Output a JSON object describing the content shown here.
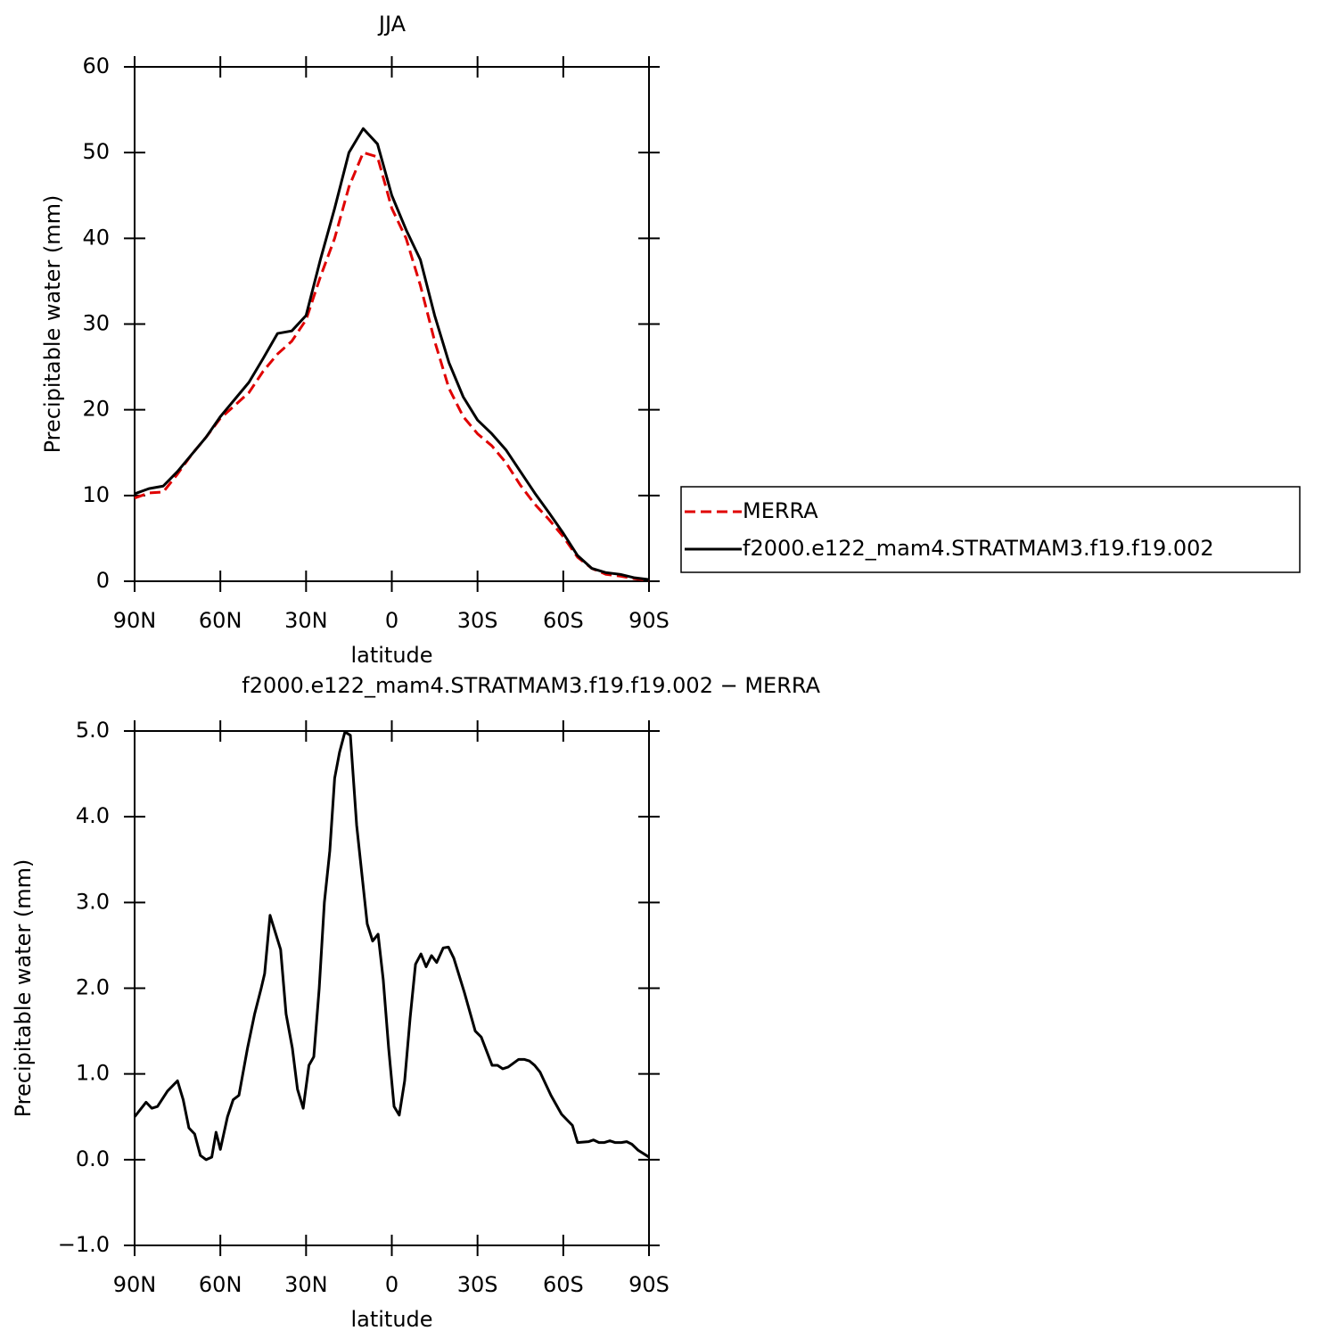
{
  "chart_data": [
    {
      "type": "line",
      "title": "JJA",
      "xlabel": "latitude",
      "ylabel": "Precipitable water (mm)",
      "x": [
        90,
        85,
        80,
        75,
        70,
        65,
        60,
        55,
        50,
        45,
        40,
        35,
        30,
        25,
        20,
        15,
        10,
        5,
        0,
        -5,
        -10,
        -15,
        -20,
        -25,
        -30,
        -35,
        -40,
        -45,
        -50,
        -55,
        -60,
        -65,
        -70,
        -75,
        -80,
        -85,
        -90
      ],
      "series": [
        {
          "name": "MERRA",
          "color": "#e00000",
          "style": "dashed",
          "values": [
            9.7,
            10.3,
            10.4,
            12.5,
            14.8,
            16.8,
            19.0,
            20.5,
            22.0,
            24.5,
            26.5,
            28.0,
            30.5,
            35.5,
            40.0,
            46.0,
            50.0,
            49.5,
            43.5,
            40.0,
            34.5,
            28.0,
            22.5,
            19.2,
            17.2,
            15.8,
            13.8,
            11.2,
            9.0,
            7.2,
            5.2,
            2.8,
            1.5,
            0.8,
            0.6,
            0.3,
            0.1
          ]
        },
        {
          "name": "f2000.e122_mam4.STRATMAM3.f19.f19.002",
          "color": "#000000",
          "style": "solid",
          "values": [
            10.2,
            10.8,
            11.1,
            12.8,
            14.8,
            16.8,
            19.2,
            21.2,
            23.2,
            26.0,
            28.9,
            29.2,
            31.0,
            37.5,
            43.5,
            50.0,
            52.8,
            51.0,
            45.0,
            41.0,
            37.5,
            31.0,
            25.5,
            21.5,
            18.8,
            17.2,
            15.3,
            12.8,
            10.3,
            8.0,
            5.6,
            3.0,
            1.5,
            1.0,
            0.8,
            0.4,
            0.2
          ]
        }
      ],
      "xlim": [
        90,
        -90
      ],
      "xticks": [
        {
          "value": 90,
          "label": "90N"
        },
        {
          "value": 60,
          "label": "60N"
        },
        {
          "value": 30,
          "label": "30N"
        },
        0,
        {
          "value": -30,
          "label": "30S"
        },
        {
          "value": -60,
          "label": "60S"
        },
        {
          "value": -90,
          "label": "90S"
        }
      ],
      "ylim": [
        0,
        60
      ],
      "yticks": [
        0,
        10,
        20,
        30,
        40,
        50,
        60
      ],
      "legend": "right"
    },
    {
      "type": "line",
      "title": "f2000.e122_mam4.STRATMAM3.f19.f19.002 − MERRA",
      "xlabel": "latitude",
      "ylabel": "Precipitable water (mm)",
      "x": [
        90,
        86,
        84,
        82,
        78.5,
        75,
        73,
        71,
        69,
        67,
        65,
        63,
        61.5,
        60,
        57.5,
        55.5,
        53.5,
        50.5,
        48,
        45.7,
        44.5,
        42.6,
        38.9,
        37,
        34.8,
        33,
        31,
        29,
        27.3,
        25.4,
        23.6,
        21.7,
        20,
        18.3,
        16.4,
        14.5,
        12.3,
        8.6,
        6.7,
        4.8,
        3,
        1.1,
        -0.8,
        -2.6,
        -4.5,
        -6.4,
        -8.3,
        -10.2,
        -12,
        -13.9,
        -15.7,
        -18,
        -19.8,
        -21.7,
        -25.4,
        -29.2,
        -31.3,
        -35.1,
        -37,
        -38.8,
        -40.7,
        -44.4,
        -46.3,
        -48.2,
        -50,
        -51.9,
        -55.7,
        -59.4,
        -63.2,
        -65,
        -68.8,
        -70.6,
        -72.5,
        -74.4,
        -76.3,
        -78.1,
        -80.3,
        -82.2,
        -84,
        -86.2,
        -90
      ],
      "values": [
        0.5,
        0.67,
        0.6,
        0.62,
        0.8,
        0.92,
        0.7,
        0.37,
        0.3,
        0.05,
        0.0,
        0.03,
        0.32,
        0.12,
        0.5,
        0.7,
        0.75,
        1.3,
        1.7,
        2.0,
        2.17,
        2.85,
        2.45,
        1.7,
        1.3,
        0.82,
        0.6,
        1.1,
        1.2,
        2.0,
        3.0,
        3.6,
        4.45,
        4.75,
        4.99,
        4.95,
        3.9,
        2.75,
        2.55,
        2.63,
        2.1,
        1.3,
        0.62,
        0.52,
        0.92,
        1.65,
        2.28,
        2.4,
        2.25,
        2.38,
        2.3,
        2.47,
        2.48,
        2.35,
        1.95,
        1.5,
        1.43,
        1.1,
        1.1,
        1.06,
        1.08,
        1.17,
        1.17,
        1.15,
        1.1,
        1.02,
        0.75,
        0.53,
        0.4,
        0.2,
        0.21,
        0.23,
        0.2,
        0.2,
        0.22,
        0.2,
        0.2,
        0.21,
        0.18,
        0.11,
        0.03
      ],
      "color": "#000000",
      "xlim": [
        90,
        -90
      ],
      "xticks": [
        {
          "value": 90,
          "label": "90N"
        },
        {
          "value": 60,
          "label": "60N"
        },
        {
          "value": 30,
          "label": "30N"
        },
        0,
        {
          "value": -30,
          "label": "30S"
        },
        {
          "value": -60,
          "label": "60S"
        },
        {
          "value": -90,
          "label": "90S"
        }
      ],
      "ylim": [
        -1,
        5
      ],
      "yticks": [
        {
          "value": -1,
          "label": "−1.0"
        },
        {
          "value": 0,
          "label": "0.0"
        },
        {
          "value": 1,
          "label": "1.0"
        },
        {
          "value": 2,
          "label": "2.0"
        },
        {
          "value": 3,
          "label": "3.0"
        },
        {
          "value": 4,
          "label": "4.0"
        },
        {
          "value": 5,
          "label": "5.0"
        }
      ]
    }
  ]
}
